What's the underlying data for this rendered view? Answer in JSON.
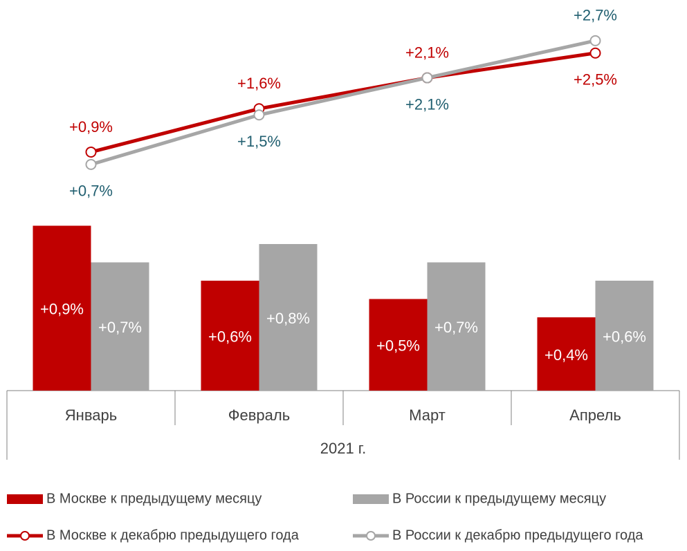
{
  "chart_data": {
    "type": "combo",
    "categories": [
      "Январь",
      "Февраль",
      "Март",
      "Апрель"
    ],
    "x_group_label": "2021 г.",
    "ylim": [
      0,
      1
    ],
    "y2lim": [
      0,
      3
    ],
    "series": [
      {
        "name": "В Москве к предыдущему месяцу",
        "type": "bar",
        "color": "#c00000",
        "label_color": "#ffffff",
        "values": [
          0.9,
          0.6,
          0.5,
          0.4
        ],
        "value_labels": [
          "+0,9%",
          "+0,6%",
          "+0,5%",
          "+0,4%"
        ]
      },
      {
        "name": "В России к предыдущему месяцу",
        "type": "bar",
        "color": "#a6a6a6",
        "label_color": "#ffffff",
        "values": [
          0.7,
          0.8,
          0.7,
          0.6
        ],
        "value_labels": [
          "+0,7%",
          "+0,8%",
          "+0,7%",
          "+0,6%"
        ]
      },
      {
        "name": "В Москве к декабрю предыдущего года",
        "type": "line",
        "axis": "y2",
        "color": "#c00000",
        "label_color": "#c00000",
        "values": [
          0.9,
          1.6,
          2.1,
          2.5
        ],
        "value_labels": [
          "+0,9%",
          "+1,6%",
          "+2,1%",
          "+2,5%"
        ]
      },
      {
        "name": "В России к декабрю предыдущего года",
        "type": "line",
        "axis": "y2",
        "color": "#a6a6a6",
        "label_color": "#215f70",
        "values": [
          0.7,
          1.5,
          2.1,
          2.7
        ],
        "value_labels": [
          "+0,7%",
          "+1,5%",
          "+2,1%",
          "+2,7%"
        ]
      }
    ]
  }
}
